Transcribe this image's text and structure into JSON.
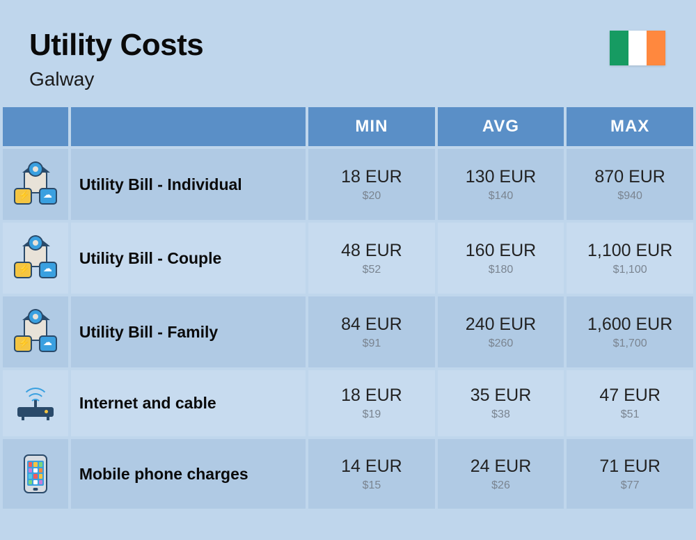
{
  "header": {
    "title": "Utility Costs",
    "subtitle": "Galway"
  },
  "flag": {
    "stripes": [
      "#169b62",
      "#ffffff",
      "#ff883e"
    ]
  },
  "columns": {
    "min": "MIN",
    "avg": "AVG",
    "max": "MAX"
  },
  "colors": {
    "page_bg": "#bfd6ec",
    "header_bg": "#5a8fc7",
    "header_text": "#ffffff",
    "row_bg": "#b0cae4",
    "row_alt_bg": "#c7dbef",
    "label_text": "#0a0a0a",
    "eur_text": "#222222",
    "usd_text": "#7a8490"
  },
  "typography": {
    "title_size": 44,
    "subtitle_size": 28,
    "header_size": 24,
    "label_size": 23,
    "eur_size": 25,
    "usd_size": 16
  },
  "rows": [
    {
      "icon": "utility",
      "label": "Utility Bill - Individual",
      "min_eur": "18 EUR",
      "min_usd": "$20",
      "avg_eur": "130 EUR",
      "avg_usd": "$140",
      "max_eur": "870 EUR",
      "max_usd": "$940"
    },
    {
      "icon": "utility",
      "label": "Utility Bill - Couple",
      "min_eur": "48 EUR",
      "min_usd": "$52",
      "avg_eur": "160 EUR",
      "avg_usd": "$180",
      "max_eur": "1,100 EUR",
      "max_usd": "$1,100"
    },
    {
      "icon": "utility",
      "label": "Utility Bill - Family",
      "min_eur": "84 EUR",
      "min_usd": "$91",
      "avg_eur": "240 EUR",
      "avg_usd": "$260",
      "max_eur": "1,600 EUR",
      "max_usd": "$1,700"
    },
    {
      "icon": "router",
      "label": "Internet and cable",
      "min_eur": "18 EUR",
      "min_usd": "$19",
      "avg_eur": "35 EUR",
      "avg_usd": "$38",
      "max_eur": "47 EUR",
      "max_usd": "$51"
    },
    {
      "icon": "phone",
      "label": "Mobile phone charges",
      "min_eur": "14 EUR",
      "min_usd": "$15",
      "avg_eur": "24 EUR",
      "avg_usd": "$26",
      "max_eur": "71 EUR",
      "max_usd": "$77"
    }
  ],
  "phone_apps": [
    "#f45b5b",
    "#f4c542",
    "#7bd67b",
    "#c77dd8",
    "#ffffff",
    "#ff883e",
    "#5ac8e0",
    "#f45b5b",
    "#f4c542",
    "#7bd67b",
    "#ffffff",
    "#c77dd8"
  ]
}
